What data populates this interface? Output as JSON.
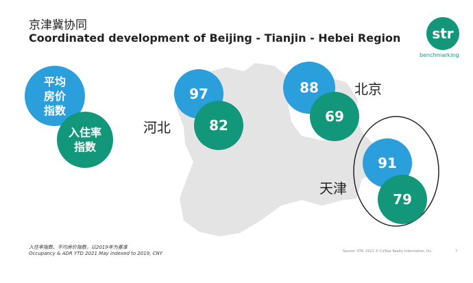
{
  "header": {
    "title_cn": "京津冀协同",
    "title_en": "Coordinated development of Beijing - Tianjin - Hebei Region"
  },
  "logo": {
    "brand": "str",
    "tagline": "benchmarking"
  },
  "legend": {
    "adr": "平均房价指数",
    "occupancy": "入住率指数"
  },
  "regions": [
    {
      "name": "河北",
      "adr": 97,
      "occupancy": 82
    },
    {
      "name": "北京",
      "adr": 88,
      "occupancy": 69
    },
    {
      "name": "天津",
      "adr": 91,
      "occupancy": 79
    }
  ],
  "footnote": {
    "cn": "入住率指数、平均房价指数，以2019年为基准",
    "en": "Occupancy & ADR YTD 2021 May indexed to 2019, CNY"
  },
  "source": "Source: STR. 2021 © CoStar Realty Information, Inc.",
  "page": "7"
}
